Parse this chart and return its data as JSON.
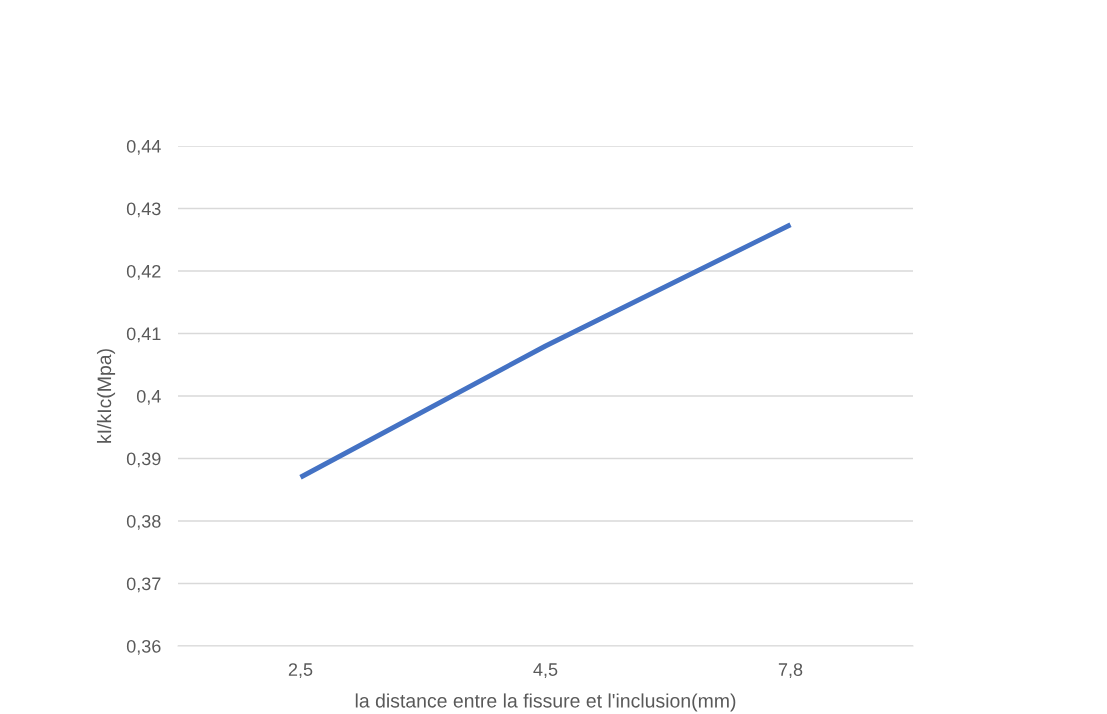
{
  "chart_data": {
    "type": "line",
    "xlabel": "la distance entre la fissure et l'inclusion(mm)",
    "ylabel": "kI/kIc(Mpa)",
    "categories": [
      "2,5",
      "4,5",
      "7,8"
    ],
    "series": [
      {
        "color": "#4472c4",
        "values": [
          0.387,
          0.408,
          0.4274
        ]
      }
    ],
    "ylim": [
      0.36,
      0.44
    ],
    "yticks": [
      {
        "value": 0.36,
        "label": "0,36"
      },
      {
        "value": 0.37,
        "label": "0,37"
      },
      {
        "value": 0.38,
        "label": "0,38"
      },
      {
        "value": 0.39,
        "label": "0,39"
      },
      {
        "value": 0.4,
        "label": "0,4"
      },
      {
        "value": 0.41,
        "label": "0,41"
      },
      {
        "value": 0.42,
        "label": "0,42"
      },
      {
        "value": 0.43,
        "label": "0,43"
      },
      {
        "value": 0.44,
        "label": "0,44"
      }
    ],
    "grid": "y",
    "legend": false,
    "marker": "none",
    "line_style": "solid"
  }
}
